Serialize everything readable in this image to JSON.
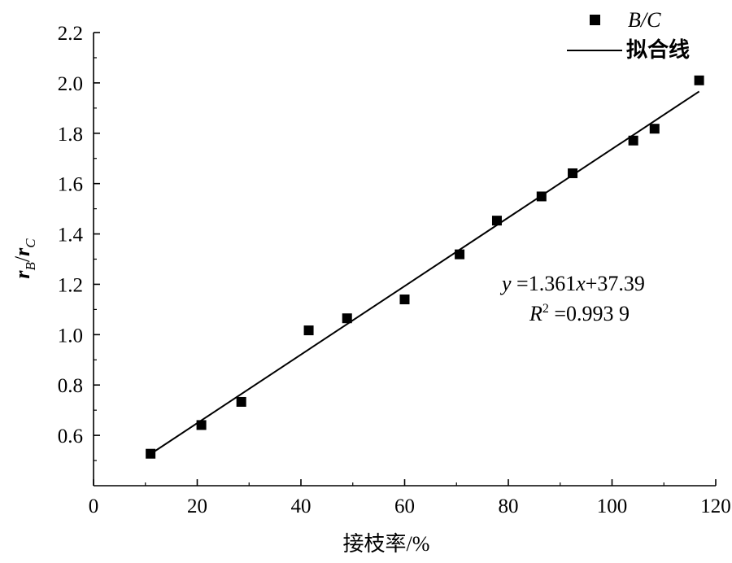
{
  "chart_data": {
    "type": "scatter",
    "xlabel": "接枝率/%",
    "ylabel": {
      "base1": "r",
      "sub1": "B",
      "sep": "/",
      "base2": "r",
      "sub2": "C"
    },
    "xlim": [
      0,
      120
    ],
    "ylim": [
      0.4,
      2.2
    ],
    "xticks": [
      0,
      20,
      40,
      60,
      80,
      100,
      120
    ],
    "yticks": [
      0.6,
      0.8,
      1.0,
      1.2,
      1.4,
      1.6,
      1.8,
      2.0,
      2.2
    ],
    "xtick_labels": [
      "0",
      "20",
      "40",
      "60",
      "80",
      "100",
      "120"
    ],
    "ytick_labels": [
      "0.6",
      "0.8",
      "1.0",
      "1.2",
      "1.4",
      "1.6",
      "1.8",
      "2.0",
      "2.2"
    ],
    "series": [
      {
        "name": "B/C",
        "marker": "square",
        "points": [
          {
            "x": 11.0,
            "y": 0.527
          },
          {
            "x": 20.8,
            "y": 0.641
          },
          {
            "x": 28.5,
            "y": 0.733
          },
          {
            "x": 41.5,
            "y": 1.017
          },
          {
            "x": 48.9,
            "y": 1.065
          },
          {
            "x": 60.0,
            "y": 1.14
          },
          {
            "x": 70.6,
            "y": 1.319
          },
          {
            "x": 77.8,
            "y": 1.453
          },
          {
            "x": 86.4,
            "y": 1.549
          },
          {
            "x": 92.4,
            "y": 1.641
          },
          {
            "x": 104.1,
            "y": 1.771
          },
          {
            "x": 108.2,
            "y": 1.818
          },
          {
            "x": 116.8,
            "y": 2.01
          }
        ]
      }
    ],
    "fit_line": {
      "name": "拟合线",
      "points": [
        {
          "x": 11.0,
          "y": 0.526
        },
        {
          "x": 116.8,
          "y": 1.966
        }
      ]
    },
    "annotation": {
      "equation": {
        "y": "y",
        "eq": " =1.361",
        "x": "x",
        "rest": "+37.39"
      },
      "r2": {
        "R": "R",
        "sup": "2",
        "rest": " =0.993 9"
      }
    },
    "legend_position": "top-right",
    "grid": false
  }
}
